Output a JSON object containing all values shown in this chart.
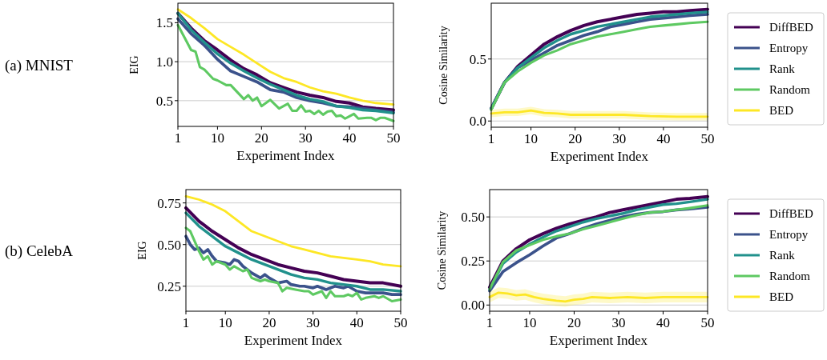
{
  "chart_data": [
    {
      "type": "line",
      "annotations": [
        "(a) MNIST"
      ],
      "xlabel": "Experiment Index",
      "ylabel": "EIG",
      "xlim": [
        1,
        50
      ],
      "xticks": [
        1,
        10,
        20,
        30,
        40,
        50
      ],
      "ylim": [
        0.17,
        1.75
      ],
      "yticks": [
        {
          "value": 0.5,
          "label": "0.5"
        },
        {
          "value": 1.0,
          "label": "1.0"
        },
        {
          "value": 1.5,
          "label": "1.5"
        }
      ],
      "grid": "y",
      "legend": false,
      "x": [
        1,
        4,
        7,
        10,
        13,
        16,
        19,
        22,
        25,
        28,
        31,
        34,
        37,
        40,
        43,
        46,
        50
      ],
      "series": [
        {
          "color": "#440154",
          "values": [
            1.62,
            1.43,
            1.27,
            1.15,
            1.02,
            0.91,
            0.83,
            0.73,
            0.67,
            0.61,
            0.57,
            0.54,
            0.49,
            0.47,
            0.42,
            0.4,
            0.38
          ]
        },
        {
          "color": "#3b528b",
          "values": [
            1.55,
            1.36,
            1.21,
            1.03,
            0.88,
            0.81,
            0.74,
            0.64,
            0.61,
            0.54,
            0.5,
            0.47,
            0.43,
            0.42,
            0.4,
            0.38,
            0.35
          ]
        },
        {
          "color": "#21918c",
          "values": [
            1.62,
            1.41,
            1.25,
            1.1,
            0.98,
            0.88,
            0.79,
            0.71,
            0.64,
            0.57,
            0.52,
            0.49,
            0.43,
            0.41,
            0.38,
            0.37,
            0.34
          ]
        },
        {
          "color": "#5ec962",
          "x": [
            1,
            4,
            5,
            6,
            7,
            9,
            10,
            12,
            13,
            16,
            17,
            18,
            19,
            20,
            22,
            24,
            26,
            27,
            28,
            29,
            30,
            31,
            32,
            33,
            34,
            35,
            36,
            37,
            38,
            39,
            40,
            41,
            42,
            44,
            45,
            46,
            47,
            48,
            50
          ],
          "values": [
            1.47,
            1.15,
            1.13,
            0.93,
            0.9,
            0.78,
            0.76,
            0.7,
            0.7,
            0.52,
            0.57,
            0.5,
            0.54,
            0.43,
            0.51,
            0.4,
            0.46,
            0.37,
            0.37,
            0.44,
            0.36,
            0.37,
            0.33,
            0.37,
            0.32,
            0.36,
            0.37,
            0.3,
            0.31,
            0.27,
            0.3,
            0.33,
            0.27,
            0.28,
            0.28,
            0.25,
            0.28,
            0.28,
            0.24
          ]
        },
        {
          "color": "#fde725",
          "values": [
            1.67,
            1.56,
            1.43,
            1.29,
            1.19,
            1.09,
            0.98,
            0.87,
            0.79,
            0.74,
            0.67,
            0.62,
            0.59,
            0.54,
            0.5,
            0.47,
            0.45
          ]
        }
      ]
    },
    {
      "type": "line",
      "xlabel": "Experiment Index",
      "ylabel": "Cosine Similarity",
      "xlim": [
        1,
        50
      ],
      "xticks": [
        1,
        10,
        20,
        30,
        40,
        50
      ],
      "ylim": [
        -0.05,
        0.95
      ],
      "yticks": [
        {
          "value": 0,
          "label": "0.0"
        },
        {
          "value": 0.5,
          "label": "0.5"
        }
      ],
      "grid": "y",
      "legend": "right",
      "x": [
        1,
        4,
        7,
        10,
        13,
        16,
        19,
        22,
        25,
        28,
        31,
        34,
        37,
        40,
        43,
        46,
        50
      ],
      "series": [
        {
          "name": "DiffBED",
          "color": "#440154",
          "values": [
            0.1,
            0.31,
            0.44,
            0.53,
            0.62,
            0.68,
            0.73,
            0.77,
            0.8,
            0.82,
            0.84,
            0.86,
            0.87,
            0.88,
            0.88,
            0.89,
            0.9
          ]
        },
        {
          "name": "Entropy",
          "color": "#3b528b",
          "values": [
            0.1,
            0.31,
            0.43,
            0.49,
            0.55,
            0.61,
            0.65,
            0.69,
            0.72,
            0.76,
            0.78,
            0.8,
            0.82,
            0.83,
            0.84,
            0.85,
            0.86
          ]
        },
        {
          "name": "Rank",
          "color": "#21918c",
          "values": [
            0.1,
            0.31,
            0.43,
            0.51,
            0.59,
            0.65,
            0.7,
            0.73,
            0.76,
            0.78,
            0.8,
            0.82,
            0.84,
            0.85,
            0.86,
            0.87,
            0.88
          ]
        },
        {
          "name": "Random",
          "color": "#5ec962",
          "values": [
            0.09,
            0.31,
            0.4,
            0.47,
            0.53,
            0.57,
            0.62,
            0.65,
            0.68,
            0.7,
            0.72,
            0.74,
            0.76,
            0.77,
            0.78,
            0.79,
            0.8
          ]
        },
        {
          "name": "BED",
          "color": "#fde725",
          "x": [
            1,
            4,
            7,
            10,
            13,
            16,
            19,
            25,
            31,
            37,
            43,
            50
          ],
          "values": [
            0.06,
            0.07,
            0.07,
            0.085,
            0.065,
            0.06,
            0.05,
            0.05,
            0.05,
            0.04,
            0.035,
            0.035
          ],
          "lower": [
            0.03,
            0.04,
            0.04,
            0.055,
            0.035,
            0.03,
            0.02,
            0.02,
            0.02,
            0.01,
            0.005,
            0.005
          ],
          "upper": [
            0.09,
            0.1,
            0.1,
            0.115,
            0.095,
            0.09,
            0.08,
            0.08,
            0.08,
            0.07,
            0.065,
            0.065
          ]
        }
      ]
    },
    {
      "type": "line",
      "annotations": [
        "(b) CelebA"
      ],
      "xlabel": "Experiment Index",
      "ylabel": "EIG",
      "xlim": [
        1,
        50
      ],
      "xticks": [
        1,
        10,
        20,
        30,
        40,
        50
      ],
      "ylim": [
        0.1,
        0.83
      ],
      "yticks": [
        {
          "value": 0.25,
          "label": "0.25"
        },
        {
          "value": 0.5,
          "label": "0.50"
        },
        {
          "value": 0.75,
          "label": "0.75"
        }
      ],
      "grid": "y",
      "legend": false,
      "x": [
        1,
        4,
        7,
        10,
        13,
        16,
        19,
        22,
        25,
        28,
        31,
        34,
        37,
        40,
        43,
        46,
        50
      ],
      "series": [
        {
          "color": "#440154",
          "values": [
            0.72,
            0.64,
            0.58,
            0.53,
            0.48,
            0.44,
            0.41,
            0.38,
            0.36,
            0.34,
            0.33,
            0.31,
            0.29,
            0.28,
            0.27,
            0.27,
            0.25
          ]
        },
        {
          "color": "#3b528b",
          "x": [
            1,
            2,
            3,
            4,
            5,
            6,
            7,
            8,
            10,
            11,
            12,
            13,
            14,
            16,
            18,
            19,
            20,
            22,
            24,
            25,
            27,
            28,
            30,
            31,
            33,
            35,
            37,
            38,
            40,
            42,
            44,
            46,
            48,
            50
          ],
          "values": [
            0.55,
            0.5,
            0.47,
            0.48,
            0.45,
            0.47,
            0.43,
            0.4,
            0.39,
            0.38,
            0.41,
            0.4,
            0.37,
            0.33,
            0.3,
            0.32,
            0.3,
            0.27,
            0.28,
            0.26,
            0.25,
            0.25,
            0.24,
            0.25,
            0.23,
            0.25,
            0.24,
            0.25,
            0.22,
            0.21,
            0.21,
            0.21,
            0.2,
            0.2
          ]
        },
        {
          "color": "#21918c",
          "values": [
            0.69,
            0.61,
            0.55,
            0.49,
            0.45,
            0.41,
            0.38,
            0.35,
            0.32,
            0.3,
            0.29,
            0.27,
            0.26,
            0.25,
            0.23,
            0.23,
            0.22
          ]
        },
        {
          "color": "#5ec962",
          "x": [
            1,
            2,
            3,
            4,
            5,
            6,
            7,
            8,
            10,
            11,
            12,
            14,
            15,
            16,
            17,
            18,
            19,
            20,
            22,
            23,
            24,
            26,
            28,
            29,
            30,
            32,
            33,
            34,
            35,
            37,
            38,
            39,
            40,
            41,
            42,
            44,
            45,
            46,
            48,
            50
          ],
          "values": [
            0.6,
            0.58,
            0.52,
            0.46,
            0.41,
            0.43,
            0.38,
            0.4,
            0.38,
            0.35,
            0.37,
            0.34,
            0.35,
            0.3,
            0.29,
            0.28,
            0.29,
            0.28,
            0.27,
            0.22,
            0.24,
            0.23,
            0.22,
            0.22,
            0.2,
            0.22,
            0.18,
            0.22,
            0.19,
            0.19,
            0.2,
            0.19,
            0.21,
            0.17,
            0.18,
            0.19,
            0.18,
            0.19,
            0.16,
            0.17
          ]
        },
        {
          "color": "#fde725",
          "values": [
            0.79,
            0.77,
            0.74,
            0.7,
            0.64,
            0.58,
            0.55,
            0.52,
            0.49,
            0.47,
            0.45,
            0.43,
            0.42,
            0.41,
            0.4,
            0.38,
            0.37
          ]
        }
      ]
    },
    {
      "type": "line",
      "xlabel": "Experiment Index",
      "ylabel": "Cosine Similarity",
      "xlim": [
        1,
        50
      ],
      "xticks": [
        1,
        10,
        20,
        30,
        40,
        50
      ],
      "ylim": [
        -0.035,
        0.655
      ],
      "yticks": [
        {
          "value": 0,
          "label": "0.00"
        },
        {
          "value": 0.25,
          "label": "0.25"
        },
        {
          "value": 0.5,
          "label": "0.50"
        }
      ],
      "grid": "y",
      "legend": "right",
      "x": [
        1,
        4,
        7,
        10,
        13,
        16,
        19,
        22,
        25,
        28,
        31,
        34,
        37,
        40,
        43,
        46,
        50
      ],
      "series": [
        {
          "name": "DiffBED",
          "color": "#440154",
          "values": [
            0.1,
            0.25,
            0.32,
            0.37,
            0.405,
            0.435,
            0.46,
            0.48,
            0.5,
            0.525,
            0.54,
            0.555,
            0.57,
            0.585,
            0.6,
            0.605,
            0.615
          ]
        },
        {
          "name": "Entropy",
          "color": "#3b528b",
          "values": [
            0.08,
            0.19,
            0.24,
            0.285,
            0.335,
            0.38,
            0.405,
            0.435,
            0.46,
            0.48,
            0.5,
            0.515,
            0.525,
            0.53,
            0.54,
            0.545,
            0.555
          ]
        },
        {
          "name": "Rank",
          "color": "#21918c",
          "values": [
            0.09,
            0.235,
            0.3,
            0.345,
            0.385,
            0.42,
            0.445,
            0.47,
            0.49,
            0.505,
            0.52,
            0.54,
            0.555,
            0.57,
            0.575,
            0.585,
            0.6
          ]
        },
        {
          "name": "Random",
          "color": "#5ec962",
          "values": [
            0.09,
            0.245,
            0.31,
            0.34,
            0.37,
            0.39,
            0.405,
            0.43,
            0.45,
            0.47,
            0.49,
            0.51,
            0.525,
            0.53,
            0.54,
            0.55,
            0.565
          ]
        },
        {
          "name": "BED",
          "color": "#fde725",
          "x": [
            1,
            3,
            5,
            7,
            9,
            11,
            13,
            16,
            18,
            20,
            22,
            24,
            28,
            32,
            36,
            40,
            44,
            50
          ],
          "values": [
            0.045,
            0.07,
            0.065,
            0.055,
            0.06,
            0.045,
            0.035,
            0.025,
            0.02,
            0.03,
            0.035,
            0.045,
            0.04,
            0.045,
            0.04,
            0.045,
            0.045,
            0.045
          ],
          "lower": [
            0.015,
            0.04,
            0.035,
            0.025,
            0.03,
            0.015,
            0.005,
            -0.005,
            -0.01,
            0.0,
            0.005,
            0.015,
            0.01,
            0.015,
            0.01,
            0.015,
            0.015,
            0.015
          ],
          "upper": [
            0.075,
            0.1,
            0.095,
            0.085,
            0.09,
            0.075,
            0.065,
            0.055,
            0.05,
            0.06,
            0.065,
            0.075,
            0.07,
            0.075,
            0.07,
            0.075,
            0.075,
            0.075
          ]
        }
      ]
    }
  ]
}
